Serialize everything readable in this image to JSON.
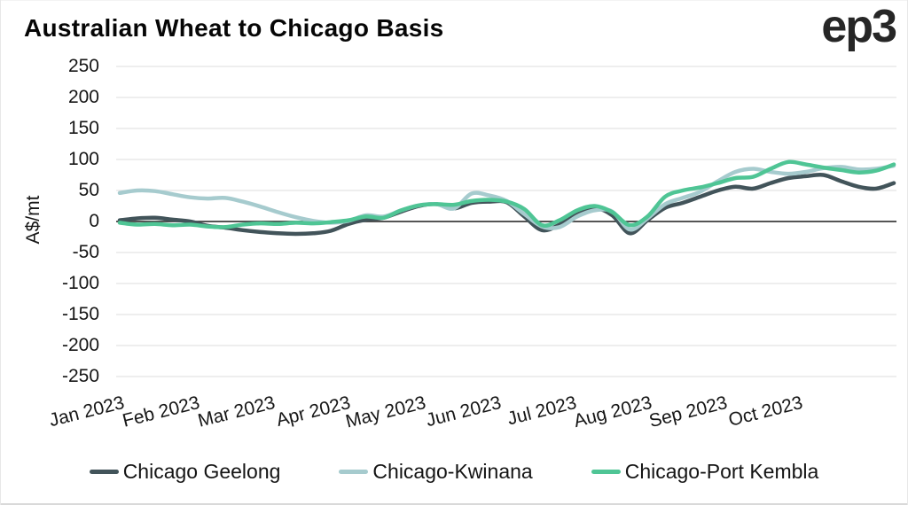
{
  "branding": {
    "logo_text": "ep3"
  },
  "chart_data": {
    "type": "line",
    "title": "Australian Wheat to Chicago Basis",
    "xlabel": "",
    "ylabel": "A$/mt",
    "ylim": [
      -250,
      250
    ],
    "ytick_step": 50,
    "ytick_labels": [
      "250",
      "200",
      "150",
      "100",
      "50",
      "0",
      "-50",
      "-100",
      "-150",
      "-200",
      "-250"
    ],
    "xtick_labels": [
      "Jan 2023",
      "Feb 2023",
      "Mar 2023",
      "Apr 2023",
      "May 2023",
      "Jun 2023",
      "Jul 2023",
      "Aug 2023",
      "Sep 2023",
      "Oct 2023"
    ],
    "grid": "horizontal",
    "gridline_color": "#e4e4e4",
    "zero_line": true,
    "zero_line_color": "#3d3d3d",
    "legend_position": "bottom",
    "x": [
      "2023-01-01",
      "2023-01-08",
      "2023-01-15",
      "2023-01-22",
      "2023-01-29",
      "2023-02-05",
      "2023-02-12",
      "2023-02-19",
      "2023-02-26",
      "2023-03-05",
      "2023-03-12",
      "2023-03-19",
      "2023-03-26",
      "2023-04-02",
      "2023-04-09",
      "2023-04-16",
      "2023-04-23",
      "2023-04-30",
      "2023-05-07",
      "2023-05-14",
      "2023-05-21",
      "2023-05-28",
      "2023-06-04",
      "2023-06-11",
      "2023-06-18",
      "2023-06-25",
      "2023-07-02",
      "2023-07-09",
      "2023-07-16",
      "2023-07-23",
      "2023-07-30",
      "2023-08-06",
      "2023-08-13",
      "2023-08-20",
      "2023-08-27",
      "2023-09-03",
      "2023-09-10",
      "2023-09-17",
      "2023-09-24",
      "2023-10-01",
      "2023-10-08",
      "2023-10-15",
      "2023-10-22",
      "2023-10-29",
      "2023-11-05"
    ],
    "series": [
      {
        "name": "Chicago Geelong",
        "color": "#42545a",
        "values": [
          2,
          5,
          6,
          3,
          0,
          -7,
          -10,
          -14,
          -17,
          -19,
          -20,
          -19,
          -15,
          -4,
          3,
          6,
          16,
          25,
          28,
          21,
          30,
          32,
          31,
          8,
          -14,
          -5,
          15,
          22,
          10,
          -19,
          2,
          22,
          30,
          40,
          50,
          56,
          53,
          62,
          70,
          73,
          75,
          65,
          56,
          53,
          62
        ]
      },
      {
        "name": "Chicago-Kwinana",
        "color": "#a6cbce",
        "values": [
          46,
          50,
          49,
          44,
          39,
          37,
          38,
          32,
          24,
          15,
          7,
          1,
          -2,
          1,
          10,
          8,
          18,
          26,
          28,
          21,
          45,
          42,
          33,
          12,
          -8,
          -9,
          8,
          18,
          16,
          -13,
          5,
          28,
          38,
          48,
          65,
          80,
          85,
          80,
          77,
          80,
          86,
          88,
          84,
          85,
          90
        ]
      },
      {
        "name": "Chicago-Port Kembla",
        "color": "#4fc595",
        "values": [
          -2,
          -5,
          -4,
          -6,
          -5,
          -8,
          -9,
          -5,
          -3,
          -4,
          -2,
          -3,
          -1,
          2,
          8,
          6,
          18,
          26,
          28,
          27,
          33,
          35,
          32,
          20,
          -6,
          2,
          18,
          25,
          15,
          -6,
          8,
          40,
          50,
          55,
          62,
          70,
          72,
          85,
          96,
          92,
          87,
          83,
          79,
          82,
          92
        ]
      }
    ]
  }
}
